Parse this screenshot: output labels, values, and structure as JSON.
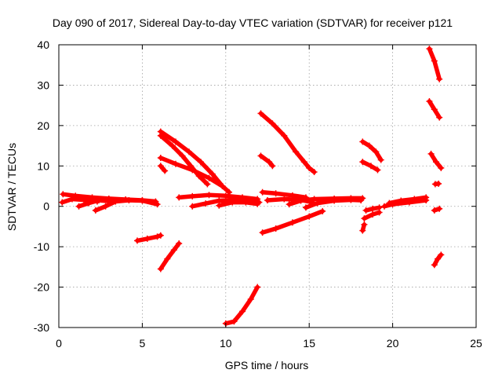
{
  "chart_data": {
    "type": "scatter",
    "title": "Day 090 of 2017, Sidereal Day-to-day VTEC variation (SDTVAR) for receiver p121",
    "xlabel": "GPS time / hours",
    "ylabel": "SDTVAR / TECUs",
    "xlim": [
      0,
      25
    ],
    "ylim": [
      -30,
      40
    ],
    "xticks": [
      0,
      5,
      10,
      15,
      20,
      25
    ],
    "yticks": [
      -30,
      -20,
      -10,
      0,
      10,
      20,
      30,
      40
    ],
    "grid": true,
    "legend": "none",
    "series_color": "#ff0000",
    "segments": [
      {
        "points": [
          [
            0.25,
            3.0
          ],
          [
            1.0,
            2.6
          ],
          [
            2.0,
            2.2
          ],
          [
            3.0,
            1.9
          ],
          [
            4.0,
            1.7
          ],
          [
            5.0,
            1.5
          ],
          [
            5.8,
            1.2
          ]
        ]
      },
      {
        "points": [
          [
            0.2,
            1.0
          ],
          [
            0.8,
            1.8
          ],
          [
            1.5,
            1.6
          ],
          [
            2.3,
            1.2
          ]
        ]
      },
      {
        "points": [
          [
            1.2,
            0.0
          ],
          [
            1.8,
            0.8
          ],
          [
            2.4,
            1.5
          ],
          [
            3.2,
            1.2
          ]
        ]
      },
      {
        "points": [
          [
            2.2,
            -1.0
          ],
          [
            2.8,
            0.0
          ],
          [
            3.4,
            1.2
          ],
          [
            4.2,
            1.5
          ],
          [
            5.0,
            1.4
          ],
          [
            5.9,
            0.5
          ]
        ]
      },
      {
        "points": [
          [
            4.7,
            -8.5
          ],
          [
            5.3,
            -8.0
          ],
          [
            5.9,
            -7.5
          ],
          [
            6.1,
            -7.2
          ]
        ]
      },
      {
        "points": [
          [
            6.1,
            18.5
          ],
          [
            7.0,
            16.0
          ],
          [
            7.8,
            13.5
          ],
          [
            8.5,
            11.0
          ],
          [
            9.2,
            8.0
          ],
          [
            9.8,
            5.0
          ],
          [
            10.2,
            3.5
          ]
        ]
      },
      {
        "points": [
          [
            6.1,
            17.5
          ],
          [
            6.8,
            15.0
          ],
          [
            7.4,
            12.5
          ],
          [
            7.9,
            10.0
          ],
          [
            8.4,
            7.5
          ],
          [
            8.9,
            5.5
          ]
        ]
      },
      {
        "points": [
          [
            6.1,
            12.0
          ],
          [
            7.0,
            10.5
          ],
          [
            8.0,
            9.0
          ],
          [
            9.0,
            7.0
          ],
          [
            9.8,
            5.0
          ]
        ]
      },
      {
        "points": [
          [
            6.1,
            10.0
          ],
          [
            6.35,
            8.8
          ]
        ]
      },
      {
        "points": [
          [
            6.1,
            -15.5
          ],
          [
            6.5,
            -13.0
          ],
          [
            6.9,
            -10.8
          ],
          [
            7.2,
            -9.2
          ]
        ]
      },
      {
        "points": [
          [
            7.2,
            2.2
          ],
          [
            8.0,
            2.5
          ],
          [
            9.0,
            2.8
          ],
          [
            10.0,
            2.6
          ],
          [
            11.0,
            2.2
          ],
          [
            11.9,
            1.8
          ]
        ]
      },
      {
        "points": [
          [
            8.0,
            0.0
          ],
          [
            8.8,
            0.7
          ],
          [
            9.6,
            1.4
          ],
          [
            10.5,
            1.6
          ],
          [
            11.3,
            1.4
          ],
          [
            12.0,
            1.0
          ]
        ]
      },
      {
        "points": [
          [
            9.6,
            0.2
          ],
          [
            10.4,
            1.0
          ],
          [
            11.2,
            1.0
          ],
          [
            11.9,
            0.6
          ]
        ]
      },
      {
        "points": [
          [
            10.0,
            -29.0
          ],
          [
            10.5,
            -28.5
          ],
          [
            11.0,
            -26.0
          ],
          [
            11.5,
            -23.0
          ],
          [
            11.9,
            -20.0
          ]
        ]
      },
      {
        "points": [
          [
            12.1,
            23.0
          ],
          [
            12.8,
            20.5
          ],
          [
            13.5,
            17.5
          ],
          [
            14.2,
            13.5
          ],
          [
            14.7,
            11.0
          ],
          [
            15.0,
            9.5
          ],
          [
            15.3,
            8.5
          ]
        ]
      },
      {
        "points": [
          [
            12.1,
            12.5
          ],
          [
            12.6,
            11.0
          ],
          [
            12.8,
            10.0
          ]
        ]
      },
      {
        "points": [
          [
            12.2,
            3.5
          ],
          [
            13.0,
            3.2
          ],
          [
            14.0,
            2.7
          ],
          [
            14.8,
            2.2
          ]
        ]
      },
      {
        "points": [
          [
            12.2,
            -6.5
          ],
          [
            13.0,
            -5.5
          ],
          [
            14.0,
            -4.0
          ],
          [
            15.0,
            -2.5
          ],
          [
            15.8,
            -1.2
          ]
        ]
      },
      {
        "points": [
          [
            12.5,
            1.5
          ],
          [
            13.5,
            1.8
          ],
          [
            14.5,
            1.6
          ],
          [
            15.2,
            1.0
          ]
        ]
      },
      {
        "points": [
          [
            13.8,
            0.5
          ],
          [
            14.5,
            1.4
          ],
          [
            15.3,
            1.8
          ],
          [
            16.5,
            1.9
          ],
          [
            17.5,
            2.0
          ],
          [
            18.2,
            2.0
          ]
        ]
      },
      {
        "points": [
          [
            14.8,
            -0.3
          ],
          [
            15.5,
            0.8
          ],
          [
            16.5,
            1.4
          ],
          [
            17.5,
            1.6
          ],
          [
            18.1,
            1.5
          ]
        ]
      },
      {
        "points": [
          [
            18.2,
            16.0
          ],
          [
            18.6,
            15.0
          ],
          [
            19.0,
            13.5
          ],
          [
            19.3,
            11.5
          ]
        ]
      },
      {
        "points": [
          [
            18.2,
            11.0
          ],
          [
            18.7,
            10.0
          ],
          [
            19.1,
            9.0
          ]
        ]
      },
      {
        "points": [
          [
            18.4,
            -1.0
          ],
          [
            18.8,
            -0.6
          ],
          [
            19.2,
            -0.3
          ]
        ]
      },
      {
        "points": [
          [
            18.3,
            -3.0
          ],
          [
            18.8,
            -2.0
          ],
          [
            19.2,
            -1.5
          ]
        ]
      },
      {
        "points": [
          [
            18.2,
            -6.0
          ],
          [
            18.3,
            -4.5
          ]
        ]
      },
      {
        "points": [
          [
            19.5,
            0.0
          ],
          [
            20.0,
            0.5
          ],
          [
            21.0,
            1.0
          ],
          [
            22.0,
            1.5
          ]
        ]
      },
      {
        "points": [
          [
            19.8,
            0.8
          ],
          [
            20.5,
            1.4
          ],
          [
            21.3,
            1.8
          ],
          [
            22.0,
            2.2
          ]
        ]
      },
      {
        "points": [
          [
            22.2,
            39.0
          ],
          [
            22.5,
            36.0
          ],
          [
            22.8,
            31.5
          ]
        ]
      },
      {
        "points": [
          [
            22.2,
            26.0
          ],
          [
            22.5,
            24.0
          ],
          [
            22.8,
            22.0
          ]
        ]
      },
      {
        "points": [
          [
            22.3,
            13.0
          ],
          [
            22.6,
            11.0
          ],
          [
            22.9,
            9.5
          ]
        ]
      },
      {
        "points": [
          [
            22.55,
            5.5
          ],
          [
            22.75,
            5.6
          ]
        ]
      },
      {
        "points": [
          [
            22.5,
            -1.0
          ],
          [
            22.8,
            -0.6
          ]
        ]
      },
      {
        "points": [
          [
            22.5,
            -14.5
          ],
          [
            22.7,
            -13.0
          ],
          [
            22.9,
            -12.0
          ]
        ]
      }
    ]
  }
}
